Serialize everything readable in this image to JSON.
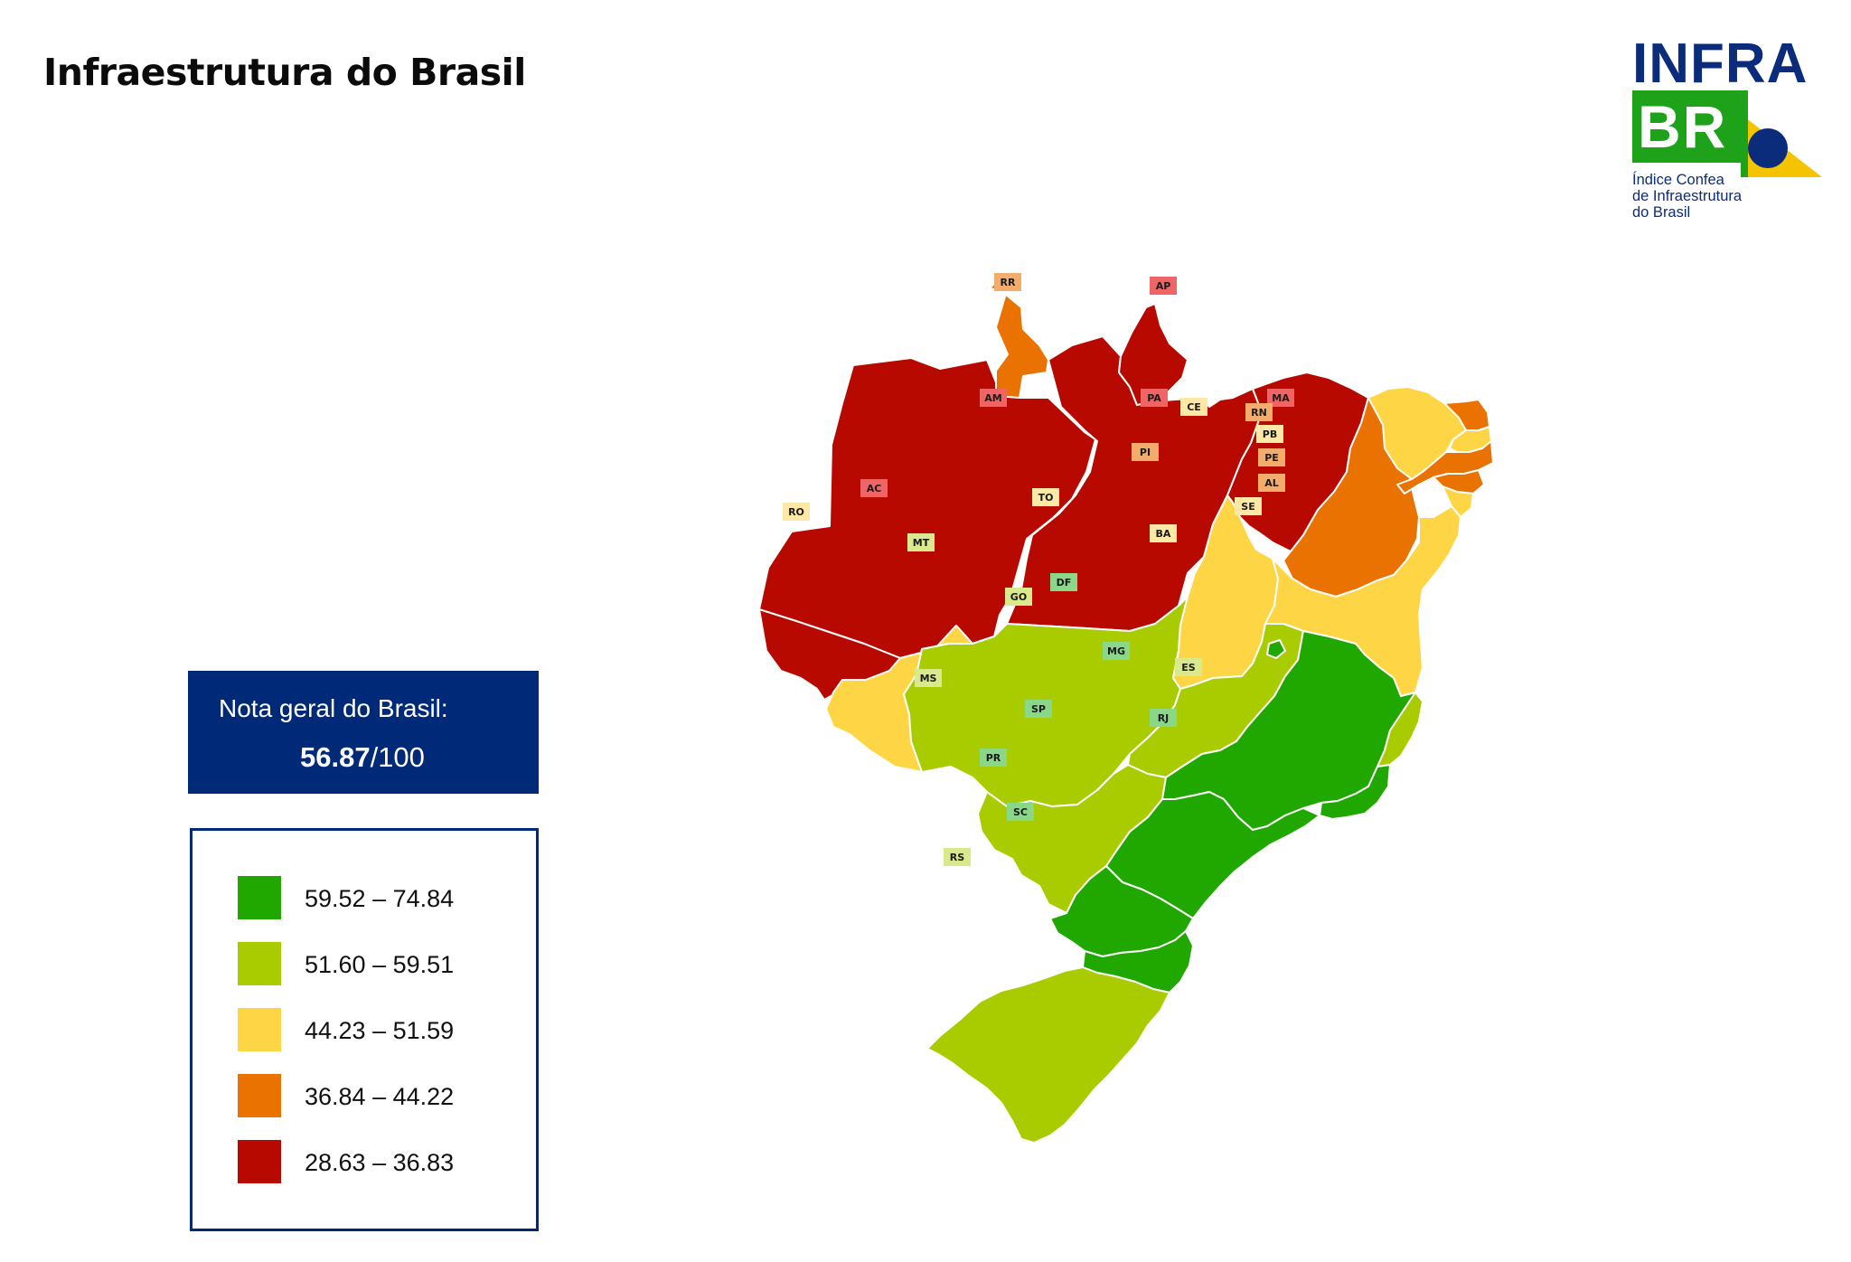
{
  "header": {
    "title": "Infraestrutura do Brasil"
  },
  "logo": {
    "word": "INFRA",
    "box_text": "BR",
    "subtitle": "Índice Confea\nde Infraestrutura\ndo Brasil",
    "colors": {
      "blue": "#0b2c7a",
      "green": "#1ea21a",
      "yellow": "#f4c400"
    }
  },
  "score": {
    "label": "Nota geral do Brasil:",
    "value": "56.87",
    "suffix": "/100"
  },
  "legend": {
    "items": [
      {
        "range": "59.52 – 74.84",
        "color": "#21a800"
      },
      {
        "range": "51.60 – 59.51",
        "color": "#a9cc00"
      },
      {
        "range": "44.23 – 51.59",
        "color": "#fdd545"
      },
      {
        "range": "36.84 – 44.22",
        "color": "#e97200"
      },
      {
        "range": "28.63 – 36.83",
        "color": "#b80900"
      }
    ]
  },
  "map": {
    "states": [
      {
        "code": "AM",
        "class": 5
      },
      {
        "code": "AC",
        "class": 5
      },
      {
        "code": "RR",
        "class": 4
      },
      {
        "code": "PA",
        "class": 5
      },
      {
        "code": "AP",
        "class": 5
      },
      {
        "code": "MA",
        "class": 5
      },
      {
        "code": "RO",
        "class": 3
      },
      {
        "code": "MT",
        "class": 2
      },
      {
        "code": "TO",
        "class": 3
      },
      {
        "code": "PI",
        "class": 4
      },
      {
        "code": "CE",
        "class": 3
      },
      {
        "code": "RN",
        "class": 4
      },
      {
        "code": "PB",
        "class": 3
      },
      {
        "code": "PE",
        "class": 4
      },
      {
        "code": "AL",
        "class": 4
      },
      {
        "code": "SE",
        "class": 3
      },
      {
        "code": "BA",
        "class": 3
      },
      {
        "code": "GO",
        "class": 2
      },
      {
        "code": "DF",
        "class": 1
      },
      {
        "code": "MS",
        "class": 2
      },
      {
        "code": "MG",
        "class": 1
      },
      {
        "code": "ES",
        "class": 2
      },
      {
        "code": "RJ",
        "class": 1
      },
      {
        "code": "SP",
        "class": 1
      },
      {
        "code": "PR",
        "class": 1
      },
      {
        "code": "SC",
        "class": 1
      },
      {
        "code": "RS",
        "class": 2
      }
    ]
  }
}
